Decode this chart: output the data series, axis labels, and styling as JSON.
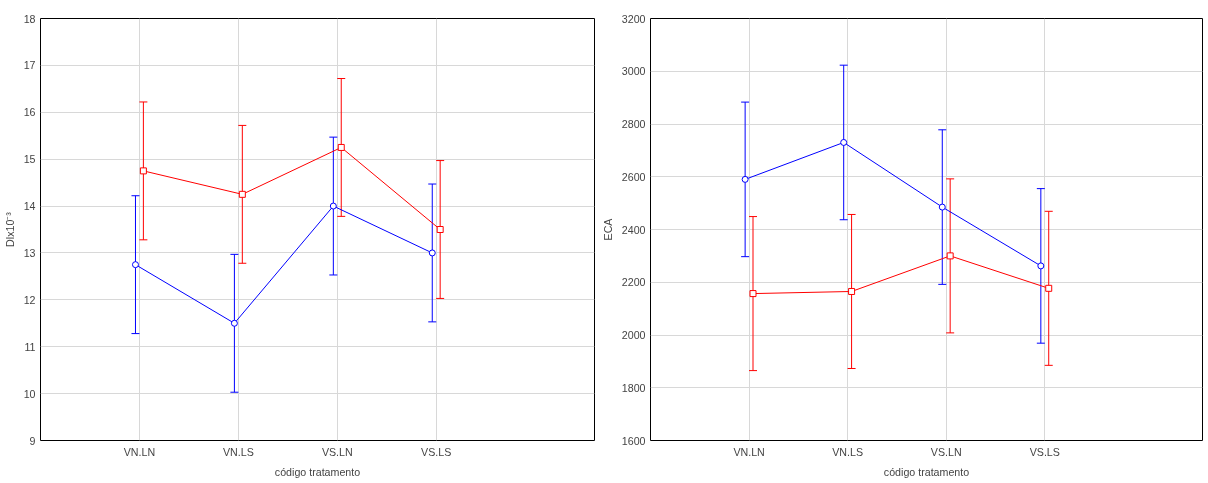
{
  "chart_data": [
    {
      "type": "line",
      "xlabel": "código tratamento",
      "ylabel": "Dlx10⁻³",
      "categories": [
        "VN.LN",
        "VN.LS",
        "VS.LN",
        "VS.LS"
      ],
      "ylim": [
        9,
        18
      ],
      "yticks": [
        9,
        10,
        11,
        12,
        13,
        14,
        15,
        16,
        17,
        18
      ],
      "grid": true,
      "series": [
        {
          "color": "#0000ff",
          "marker": "circle",
          "values": [
            12.75,
            11.5,
            14.0,
            13.0
          ],
          "errors": [
            1.47,
            1.47,
            1.47,
            1.47
          ]
        },
        {
          "color": "#ff0000",
          "marker": "square",
          "values": [
            14.75,
            14.25,
            15.25,
            13.5
          ],
          "errors": [
            1.47,
            1.47,
            1.47,
            1.47
          ]
        }
      ]
    },
    {
      "type": "line",
      "xlabel": "código tratamento",
      "ylabel": "ECA",
      "categories": [
        "VN.LN",
        "VN.LS",
        "VS.LN",
        "VS.LS"
      ],
      "ylim": [
        1600,
        3200
      ],
      "yticks": [
        1600,
        1800,
        2000,
        2200,
        2400,
        2600,
        2800,
        3000,
        3200
      ],
      "grid": true,
      "series": [
        {
          "color": "#0000ff",
          "marker": "circle",
          "values": [
            2590,
            2730,
            2485,
            2262
          ],
          "errors": [
            293,
            293,
            293,
            293
          ]
        },
        {
          "color": "#ff0000",
          "marker": "square",
          "values": [
            2157,
            2165,
            2300,
            2177
          ],
          "errors": [
            292,
            292,
            292,
            292
          ]
        }
      ]
    }
  ]
}
